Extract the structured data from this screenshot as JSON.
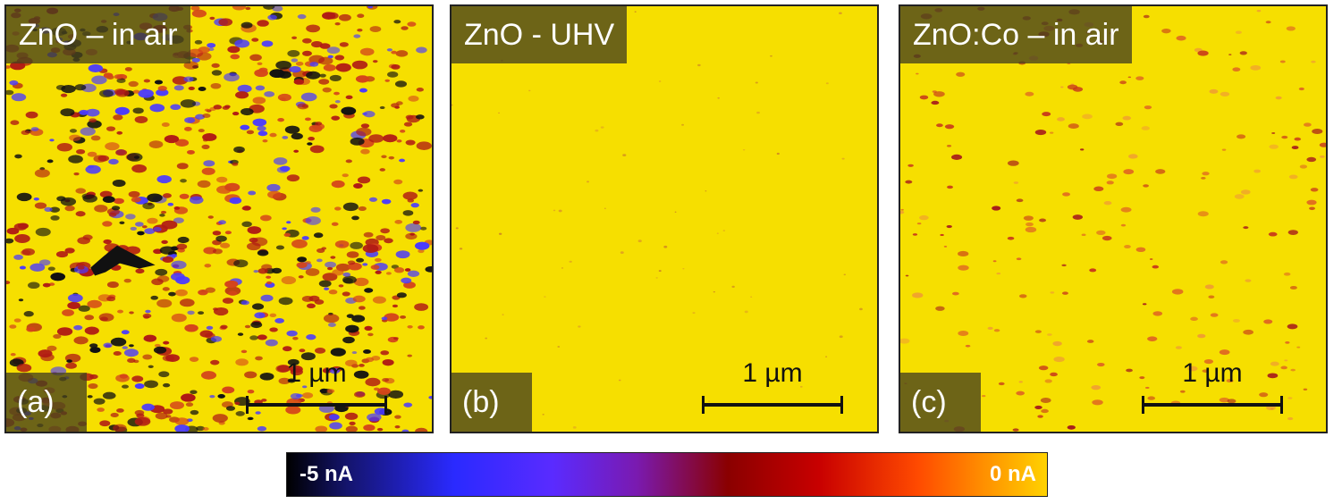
{
  "panels": [
    {
      "title": "ZnO – in air",
      "letter": "(a)",
      "scale_label": "1 µm",
      "defect_density": "high"
    },
    {
      "title": "ZnO - UHV",
      "letter": "(b)",
      "scale_label": "1 µm",
      "defect_density": "very low"
    },
    {
      "title": "ZnO:Co – in air",
      "letter": "(c)",
      "scale_label": "1 µm",
      "defect_density": "low"
    }
  ],
  "colorbar": {
    "min_label": "-5 nA",
    "max_label": "0 nA",
    "colors": [
      "#000000",
      "#2a2aff",
      "#8a0000",
      "#ff4a00",
      "#ffd200"
    ]
  },
  "colors": {
    "background": "#f6df00",
    "spot_red": "#b01a14",
    "spot_blue": "#4a3aff",
    "spot_dark": "#111111"
  }
}
